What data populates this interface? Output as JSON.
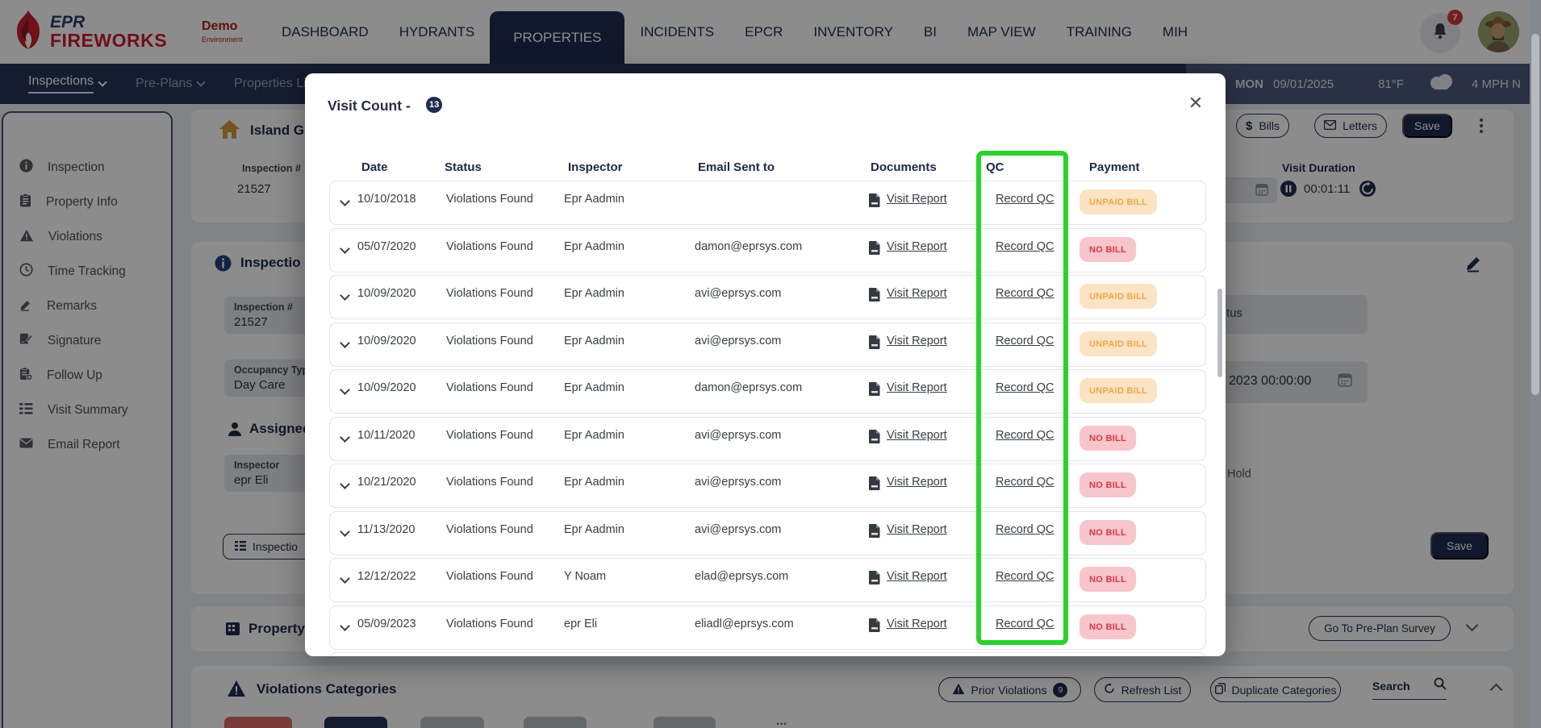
{
  "header": {
    "logo_line1": "EPR",
    "logo_line2": "FIREWORKS",
    "env_label": "Demo",
    "env_sub": "Environment",
    "nav": [
      {
        "label": "DASHBOARD",
        "active": false
      },
      {
        "label": "HYDRANTS",
        "active": false
      },
      {
        "label": "PROPERTIES",
        "active": true
      },
      {
        "label": "INCIDENTS",
        "active": false
      },
      {
        "label": "EPCR",
        "active": false
      },
      {
        "label": "INVENTORY",
        "active": false
      },
      {
        "label": "BI",
        "active": false
      },
      {
        "label": "MAP VIEW",
        "active": false
      },
      {
        "label": "TRAINING",
        "active": false
      },
      {
        "label": "MIH",
        "active": false
      }
    ],
    "notifications_count": "7"
  },
  "subnav": {
    "items": [
      {
        "label": "Inspections",
        "caret": true,
        "active": true
      },
      {
        "label": "Pre-Plans",
        "caret": true,
        "active": false
      },
      {
        "label": "Properties Li",
        "caret": false,
        "active": false
      }
    ],
    "weather": {
      "day": "MON",
      "date": "09/01/2025",
      "temp": "81°F",
      "wind": "4 MPH N"
    }
  },
  "sidebar": {
    "items": [
      {
        "icon": "info",
        "label": "Inspection"
      },
      {
        "icon": "clipboard",
        "label": "Property Info"
      },
      {
        "icon": "warning",
        "label": "Violations"
      },
      {
        "icon": "clock",
        "label": "Time Tracking"
      },
      {
        "icon": "pencil",
        "label": "Remarks"
      },
      {
        "icon": "signature",
        "label": "Signature"
      },
      {
        "icon": "clipboard-plus",
        "label": "Follow Up"
      },
      {
        "icon": "list",
        "label": "Visit Summary"
      },
      {
        "icon": "envelope",
        "label": "Email Report"
      }
    ]
  },
  "background": {
    "property_title": "Island Ge",
    "inspection_num_label": "Inspection #",
    "inspection_num_value": "21527",
    "bills_label": "Bills",
    "letters_label": "Letters",
    "save_label": "Save",
    "visit_duration_label": "Visit Duration",
    "visit_duration_time": "00:01:11",
    "inspection_card_title": "Inspectio",
    "field1_label": "Inspection #",
    "field1_value": "21527",
    "field2_label": "Occupancy Type",
    "field2_value": "Day Care",
    "assigned_title": "Assigned",
    "field3_label": "Inspector",
    "field3_value": "epr Eli",
    "inspection_btn_label": "Inspectio",
    "status_fragment": "tus",
    "date_fragment": "2023 00:00:00",
    "hold_label": "Hold",
    "save2_label": "Save",
    "property_card_title": "Property",
    "preplan_btn_label": "Go To Pre-Plan Survey",
    "violations_title": "Violations Categories",
    "prior_violations_label": "Prior Violations",
    "prior_violations_badge": "9",
    "refresh_list_label": "Refresh List",
    "duplicate_categories_label": "Duplicate Categories",
    "search_label": "Search"
  },
  "modal": {
    "title": "Visit Count -",
    "count": "13",
    "close_glyph": "✕",
    "columns": [
      "Date",
      "Status",
      "Inspector",
      "Email Sent to",
      "Documents",
      "QC",
      "Payment"
    ],
    "rows": [
      {
        "date": "10/10/2018",
        "status": "Violations Found",
        "inspector": "Epr Aadmin",
        "email": "",
        "document": "Visit Report",
        "qc": "Record QC",
        "payment": "UNPAID BILL"
      },
      {
        "date": "05/07/2020",
        "status": "Violations Found",
        "inspector": "Epr Aadmin",
        "email": "damon@eprsys.com",
        "document": "Visit Report",
        "qc": "Record QC",
        "payment": "NO BILL"
      },
      {
        "date": "10/09/2020",
        "status": "Violations Found",
        "inspector": "Epr Aadmin",
        "email": "avi@eprsys.com",
        "document": "Visit Report",
        "qc": "Record QC",
        "payment": "UNPAID BILL"
      },
      {
        "date": "10/09/2020",
        "status": "Violations Found",
        "inspector": "Epr Aadmin",
        "email": "avi@eprsys.com",
        "document": "Visit Report",
        "qc": "Record QC",
        "payment": "UNPAID BILL"
      },
      {
        "date": "10/09/2020",
        "status": "Violations Found",
        "inspector": "Epr Aadmin",
        "email": "damon@eprsys.com",
        "document": "Visit Report",
        "qc": "Record QC",
        "payment": "UNPAID BILL"
      },
      {
        "date": "10/11/2020",
        "status": "Violations Found",
        "inspector": "Epr Aadmin",
        "email": "avi@eprsys.com",
        "document": "Visit Report",
        "qc": "Record QC",
        "payment": "NO BILL"
      },
      {
        "date": "10/21/2020",
        "status": "Violations Found",
        "inspector": "Epr Aadmin",
        "email": "avi@eprsys.com",
        "document": "Visit Report",
        "qc": "Record QC",
        "payment": "NO BILL"
      },
      {
        "date": "11/13/2020",
        "status": "Violations Found",
        "inspector": "Epr Aadmin",
        "email": "avi@eprsys.com",
        "document": "Visit Report",
        "qc": "Record QC",
        "payment": "NO BILL"
      },
      {
        "date": "12/12/2022",
        "status": "Violations Found",
        "inspector": "Y Noam",
        "email": "elad@eprsys.com",
        "document": "Visit Report",
        "qc": "Record QC",
        "payment": "NO BILL"
      },
      {
        "date": "05/09/2023",
        "status": "Violations Found",
        "inspector": "epr Eli",
        "email": "eliadl@eprsys.com",
        "document": "Visit Report",
        "qc": "Record QC",
        "payment": "NO BILL"
      }
    ]
  },
  "colors": {
    "navy": "#1f2c52",
    "brand_red": "#c8202f",
    "qc_highlight_green": "#2cd12c",
    "unpaid_bg": "#fbe3c3",
    "unpaid_text": "#e9a94c",
    "nobill_bg": "#f7c6cc",
    "nobill_text": "#dd3642"
  }
}
